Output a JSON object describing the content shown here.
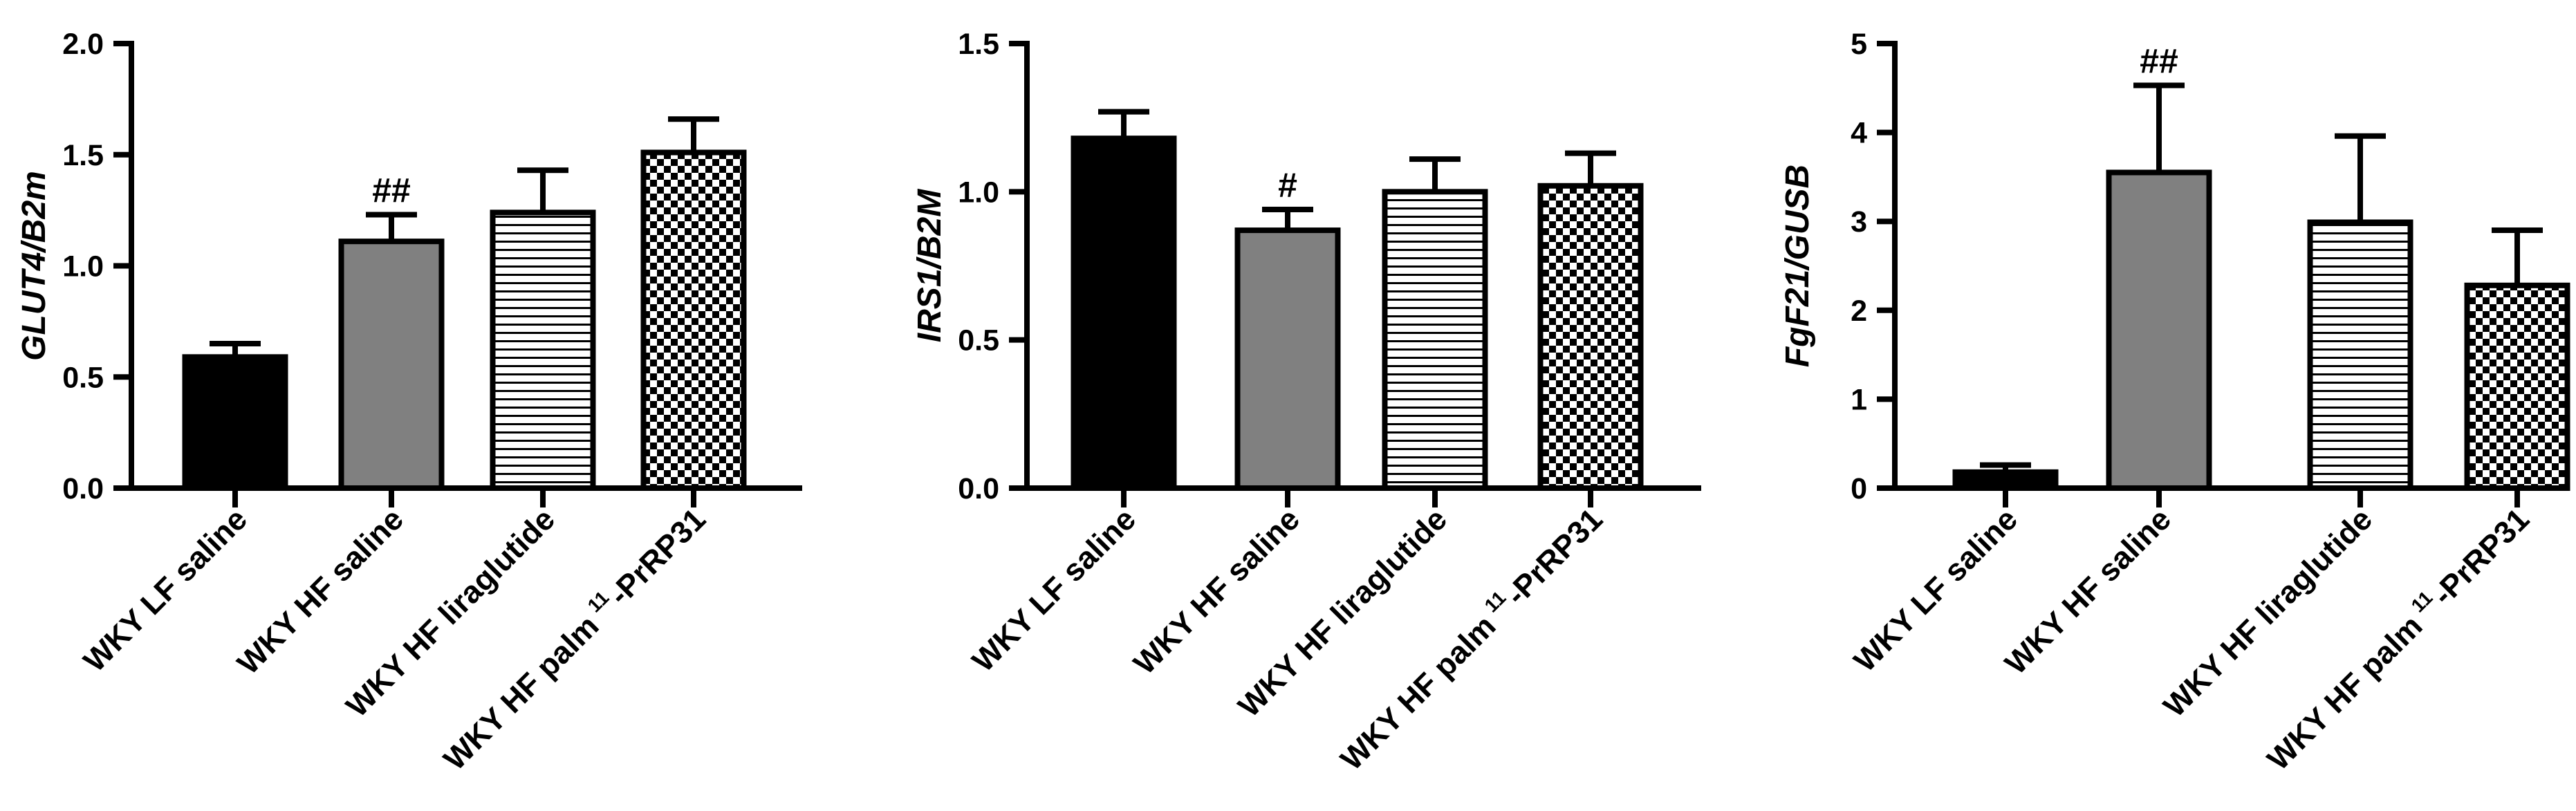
{
  "colors": {
    "axis": "#000000",
    "bar_black": "#000000",
    "bar_gray": "#808080",
    "pattern_ink": "#000000",
    "background": "#ffffff"
  },
  "chart_data": [
    {
      "type": "bar",
      "ylabel": "GLUT4/B2m",
      "ylim": [
        0,
        2.0
      ],
      "yticks": [
        "0.0",
        "0.5",
        "1.0",
        "1.5",
        "2.0"
      ],
      "categories": [
        {
          "text": "WKY LF saline"
        },
        {
          "text": "WKY HF saline"
        },
        {
          "text": "WKY HF liraglutide"
        },
        {
          "text": "WKY HF palm",
          "sup": "11",
          "suffix": "-PrRP31"
        }
      ],
      "values": [
        0.59,
        1.11,
        1.24,
        1.51
      ],
      "errors": [
        0.06,
        0.12,
        0.19,
        0.15
      ],
      "fills": [
        "black",
        "gray",
        "hlines",
        "checker"
      ],
      "annotations": [
        "",
        "##",
        "",
        ""
      ]
    },
    {
      "type": "bar",
      "ylabel": "IRS1/B2M",
      "ylim": [
        0,
        1.5
      ],
      "yticks": [
        "0.0",
        "0.5",
        "1.0",
        "1.5"
      ],
      "categories": [
        {
          "text": "WKY LF saline"
        },
        {
          "text": "WKY HF saline"
        },
        {
          "text": "WKY HF liraglutide"
        },
        {
          "text": "WKY HF palm",
          "sup": "11",
          "suffix": "-PrRP31"
        }
      ],
      "values": [
        1.18,
        0.87,
        1.0,
        1.02
      ],
      "errors": [
        0.09,
        0.07,
        0.11,
        0.11
      ],
      "fills": [
        "black",
        "gray",
        "hlines",
        "checker"
      ],
      "annotations": [
        "",
        "#",
        "",
        ""
      ]
    },
    {
      "type": "bar",
      "ylabel": "FgF21/GUSB",
      "ylim": [
        0,
        5
      ],
      "yticks": [
        "0",
        "1",
        "2",
        "3",
        "4",
        "5"
      ],
      "categories": [
        {
          "text": "WKY LF saline"
        },
        {
          "text": "WKY HF saline"
        },
        {
          "text": "WKY HF liraglutide"
        },
        {
          "text": "WKY HF palm",
          "sup": "11",
          "suffix": "-PrRP31"
        }
      ],
      "values": [
        0.18,
        3.55,
        2.99,
        2.28
      ],
      "errors": [
        0.08,
        0.98,
        0.97,
        0.62
      ],
      "fills": [
        "black",
        "gray",
        "hlines",
        "checker"
      ],
      "annotations": [
        "",
        "##",
        "",
        ""
      ]
    }
  ]
}
